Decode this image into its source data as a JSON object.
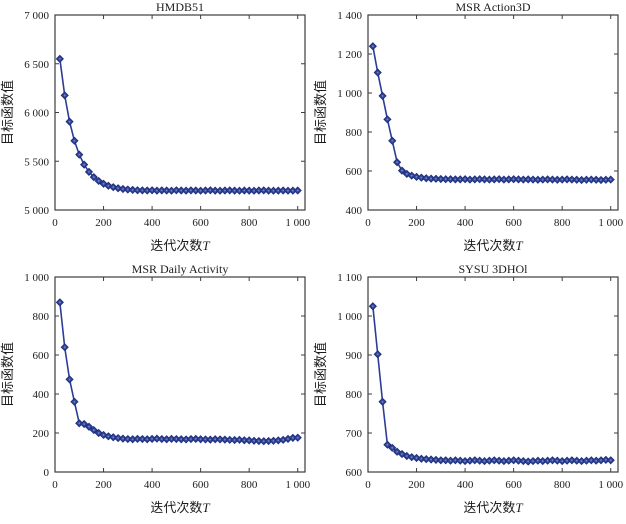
{
  "figure": {
    "background": "#ffffff",
    "rows": 2,
    "cols": 2
  },
  "style": {
    "line_color": "#2c3d96",
    "marker_fill": "#33479e",
    "marker_edge": "#1f2f7a",
    "marker_center_dot": "#7485c8",
    "axis_color": "#3c3c3c",
    "text_color": "#1c1c1c"
  },
  "chart_data": [
    {
      "type": "line",
      "title": "HMDB51",
      "xlabel": "迭代次数",
      "xlabel_var": "T",
      "ylabel": "目标函数值",
      "grid": false,
      "legend": null,
      "marker": "diamond",
      "xlim": [
        0,
        1030
      ],
      "ylim": [
        5000,
        7000
      ],
      "xticks": [
        0,
        200,
        400,
        600,
        800,
        1000
      ],
      "yticks": [
        5000,
        5500,
        6000,
        6500,
        7000
      ],
      "x": [
        20,
        40,
        60,
        80,
        100,
        120,
        140,
        160,
        180,
        200,
        220,
        240,
        260,
        280,
        300,
        320,
        340,
        360,
        380,
        400,
        420,
        440,
        460,
        480,
        500,
        520,
        540,
        560,
        580,
        600,
        620,
        640,
        660,
        680,
        700,
        720,
        740,
        760,
        780,
        800,
        820,
        840,
        860,
        880,
        900,
        920,
        940,
        960,
        980,
        1000
      ],
      "y": [
        6550,
        6176,
        5906,
        5710,
        5568,
        5465,
        5391,
        5337,
        5298,
        5269,
        5249,
        5234,
        5223,
        5215,
        5210,
        5206,
        5203,
        5201,
        5200,
        5202,
        5199,
        5201,
        5200,
        5198,
        5202,
        5200,
        5199,
        5201,
        5200,
        5198,
        5200,
        5202,
        5199,
        5198,
        5200,
        5201,
        5199,
        5198,
        5200,
        5199,
        5198,
        5200,
        5201,
        5199,
        5198,
        5199,
        5200,
        5198,
        5199,
        5200
      ]
    },
    {
      "type": "line",
      "title": "MSR Action3D",
      "xlabel": "迭代次数",
      "xlabel_var": "T",
      "ylabel": "目标函数值",
      "grid": false,
      "legend": null,
      "marker": "diamond",
      "xlim": [
        0,
        1030
      ],
      "ylim": [
        400,
        1400
      ],
      "xticks": [
        0,
        200,
        400,
        600,
        800,
        1000
      ],
      "yticks": [
        400,
        600,
        800,
        1000,
        1200,
        1400
      ],
      "x": [
        20,
        40,
        60,
        80,
        100,
        120,
        140,
        160,
        180,
        200,
        220,
        240,
        260,
        280,
        300,
        320,
        340,
        360,
        380,
        400,
        420,
        440,
        460,
        480,
        500,
        520,
        540,
        560,
        580,
        600,
        620,
        640,
        660,
        680,
        700,
        720,
        740,
        760,
        780,
        800,
        820,
        840,
        860,
        880,
        900,
        920,
        940,
        960,
        980,
        1000
      ],
      "y": [
        1240,
        1105,
        985,
        865,
        755,
        645,
        602,
        585,
        576,
        570,
        566,
        563,
        561,
        560,
        559,
        558,
        558,
        557,
        557,
        558,
        556,
        557,
        558,
        557,
        556,
        557,
        558,
        556,
        557,
        558,
        557,
        556,
        557,
        556,
        555,
        556,
        557,
        556,
        555,
        556,
        557,
        556,
        555,
        554,
        555,
        556,
        555,
        554,
        555,
        556
      ]
    },
    {
      "type": "line",
      "title": "MSR Daily Activity",
      "xlabel": "迭代次数",
      "xlabel_var": "T",
      "ylabel": "目标函数值",
      "grid": false,
      "legend": null,
      "marker": "diamond",
      "xlim": [
        0,
        1030
      ],
      "ylim": [
        0,
        1000
      ],
      "xticks": [
        0,
        200,
        400,
        600,
        800,
        1000
      ],
      "yticks": [
        0,
        200,
        400,
        600,
        800,
        1000
      ],
      "x": [
        20,
        40,
        60,
        80,
        100,
        120,
        140,
        160,
        180,
        200,
        220,
        240,
        260,
        280,
        300,
        320,
        340,
        360,
        380,
        400,
        420,
        440,
        460,
        480,
        500,
        520,
        540,
        560,
        580,
        600,
        620,
        640,
        660,
        680,
        700,
        720,
        740,
        760,
        780,
        800,
        820,
        840,
        860,
        880,
        900,
        920,
        940,
        960,
        980,
        1000
      ],
      "y": [
        870,
        640,
        475,
        360,
        250,
        246,
        232,
        215,
        200,
        190,
        183,
        178,
        174,
        171,
        169,
        168,
        170,
        169,
        168,
        170,
        171,
        169,
        168,
        170,
        169,
        168,
        167,
        169,
        170,
        168,
        167,
        166,
        168,
        167,
        166,
        165,
        164,
        165,
        163,
        162,
        160,
        159,
        158,
        159,
        160,
        162,
        165,
        170,
        175,
        176
      ]
    },
    {
      "type": "line",
      "title": "SYSU 3DHOl",
      "xlabel": "迭代次数",
      "xlabel_var": "T",
      "ylabel": "目标函数值",
      "grid": false,
      "legend": null,
      "marker": "diamond",
      "xlim": [
        0,
        1030
      ],
      "ylim": [
        600,
        1100
      ],
      "xticks": [
        0,
        200,
        400,
        600,
        800,
        1000
      ],
      "yticks": [
        600,
        700,
        800,
        900,
        1000,
        1100
      ],
      "x": [
        20,
        40,
        60,
        80,
        100,
        120,
        140,
        160,
        180,
        200,
        220,
        240,
        260,
        280,
        300,
        320,
        340,
        360,
        380,
        400,
        420,
        440,
        460,
        480,
        500,
        520,
        540,
        560,
        580,
        600,
        620,
        640,
        660,
        680,
        700,
        720,
        740,
        760,
        780,
        800,
        820,
        840,
        860,
        880,
        900,
        920,
        940,
        960,
        980,
        1000
      ],
      "y": [
        1025,
        902,
        780,
        670,
        662,
        652,
        646,
        641,
        638,
        636,
        634,
        633,
        632,
        631,
        630,
        630,
        629,
        630,
        629,
        628,
        629,
        630,
        629,
        628,
        629,
        630,
        629,
        628,
        629,
        630,
        629,
        628,
        627,
        628,
        629,
        628,
        629,
        630,
        629,
        628,
        629,
        630,
        629,
        628,
        629,
        630,
        629,
        630,
        631,
        630
      ]
    }
  ]
}
